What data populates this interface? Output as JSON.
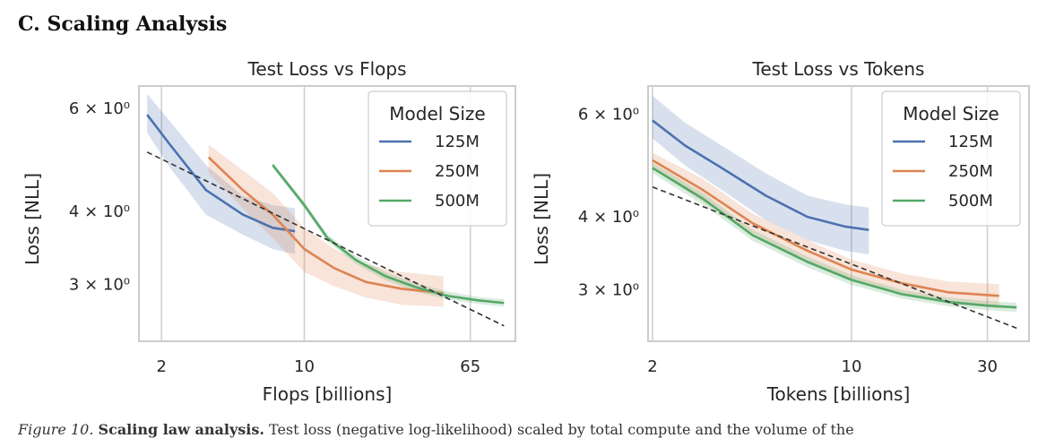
{
  "section_heading": "C. Scaling Analysis",
  "caption": {
    "label": "Figure 10.",
    "title": "Scaling law analysis.",
    "text": "Test loss (negative log-likelihood) scaled by total compute and the volume of the"
  },
  "chart_data": [
    {
      "type": "line",
      "title": "Test Loss vs Flops",
      "xlabel": "Flops [billions]",
      "ylabel": "Loss [NLL]",
      "xscale": "log",
      "yscale": "log",
      "xlim": [
        1.55,
        108
      ],
      "ylim": [
        2.4,
        6.55
      ],
      "xticks": [
        {
          "value": 2,
          "label": "2"
        },
        {
          "value": 10,
          "label": "10"
        },
        {
          "value": 65,
          "label": "65"
        }
      ],
      "yticks": [
        {
          "value": 6,
          "label": "6 × 10⁰"
        },
        {
          "value": 4,
          "label": "4 × 10⁰"
        },
        {
          "value": 3,
          "label": "3 × 10⁰"
        }
      ],
      "grid": "x-only",
      "legend": {
        "title": "Model Size",
        "position": "top-right"
      },
      "series": [
        {
          "name": "125M",
          "color": "#4c72b0",
          "x": [
            1.7,
            2.2,
            3.3,
            5.0,
            7.0,
            9.0
          ],
          "y": [
            5.85,
            5.2,
            4.35,
            3.95,
            3.75,
            3.7
          ],
          "lower": [
            5.45,
            4.75,
            3.95,
            3.65,
            3.45,
            3.38
          ],
          "upper": [
            6.35,
            5.7,
            4.8,
            4.25,
            4.1,
            4.05
          ]
        },
        {
          "name": "250M",
          "color": "#dd8452",
          "x": [
            3.4,
            5.0,
            7.0,
            10.0,
            14.0,
            20.0,
            30.0,
            48.0
          ],
          "y": [
            4.95,
            4.35,
            3.95,
            3.45,
            3.2,
            3.03,
            2.95,
            2.9
          ],
          "lower": [
            4.65,
            4.05,
            3.6,
            3.15,
            2.98,
            2.85,
            2.77,
            2.75
          ],
          "upper": [
            5.2,
            4.7,
            4.3,
            3.75,
            3.45,
            3.25,
            3.15,
            3.1
          ]
        },
        {
          "name": "500M",
          "color": "#55a868",
          "x": [
            7.0,
            10.0,
            13.0,
            18.0,
            25.0,
            35.0,
            50.0,
            70.0,
            95.0
          ],
          "y": [
            4.8,
            4.1,
            3.6,
            3.3,
            3.1,
            2.97,
            2.87,
            2.82,
            2.79
          ],
          "lower": [
            4.75,
            4.05,
            3.55,
            3.25,
            3.05,
            2.92,
            2.83,
            2.78,
            2.75
          ],
          "upper": [
            4.85,
            4.15,
            3.65,
            3.35,
            3.15,
            3.02,
            2.92,
            2.86,
            2.83
          ]
        }
      ],
      "fit_line": {
        "x": [
          1.7,
          95.0
        ],
        "y": [
          5.05,
          2.55
        ]
      }
    },
    {
      "type": "line",
      "title": "Test Loss vs Tokens",
      "xlabel": "Tokens [billions]",
      "ylabel": "Loss [NLL]",
      "xscale": "log",
      "yscale": "log",
      "xlim": [
        1.93,
        42
      ],
      "ylim": [
        2.45,
        6.7
      ],
      "xticks": [
        {
          "value": 2,
          "label": "2"
        },
        {
          "value": 10,
          "label": "10"
        },
        {
          "value": 30,
          "label": "30"
        }
      ],
      "yticks": [
        {
          "value": 6,
          "label": "6 × 10⁰"
        },
        {
          "value": 4,
          "label": "4 × 10⁰"
        },
        {
          "value": 3,
          "label": "3 × 10⁰"
        }
      ],
      "grid": "x-only",
      "legend": {
        "title": "Model Size",
        "position": "top-right"
      },
      "series": [
        {
          "name": "125M",
          "color": "#4c72b0",
          "x": [
            2.0,
            2.6,
            3.5,
            5.0,
            7.0,
            9.5,
            11.5
          ],
          "y": [
            5.85,
            5.3,
            4.85,
            4.35,
            4.0,
            3.85,
            3.8
          ],
          "lower": [
            5.45,
            4.9,
            4.45,
            3.95,
            3.65,
            3.5,
            3.45
          ],
          "upper": [
            6.45,
            5.8,
            5.3,
            4.75,
            4.35,
            4.2,
            4.15
          ]
        },
        {
          "name": "250M",
          "color": "#dd8452",
          "x": [
            2.0,
            3.0,
            4.5,
            7.0,
            10.0,
            15.0,
            22.0,
            33.0
          ],
          "y": [
            5.0,
            4.45,
            3.9,
            3.5,
            3.25,
            3.08,
            2.97,
            2.93
          ],
          "lower": [
            4.85,
            4.25,
            3.75,
            3.35,
            3.12,
            2.95,
            2.84,
            2.79
          ],
          "upper": [
            5.15,
            4.65,
            4.05,
            3.65,
            3.38,
            3.2,
            3.1,
            3.07
          ]
        },
        {
          "name": "500M",
          "color": "#55a868",
          "x": [
            2.0,
            3.0,
            4.5,
            7.0,
            10.0,
            15.0,
            22.0,
            30.0,
            38.0
          ],
          "y": [
            4.85,
            4.3,
            3.72,
            3.35,
            3.12,
            2.95,
            2.86,
            2.82,
            2.8
          ],
          "lower": [
            4.75,
            4.2,
            3.64,
            3.28,
            3.06,
            2.9,
            2.81,
            2.77,
            2.75
          ],
          "upper": [
            4.95,
            4.4,
            3.8,
            3.42,
            3.18,
            3.0,
            2.91,
            2.87,
            2.85
          ]
        }
      ],
      "fit_line": {
        "x": [
          2.0,
          38.0
        ],
        "y": [
          4.5,
          2.58
        ]
      }
    }
  ]
}
